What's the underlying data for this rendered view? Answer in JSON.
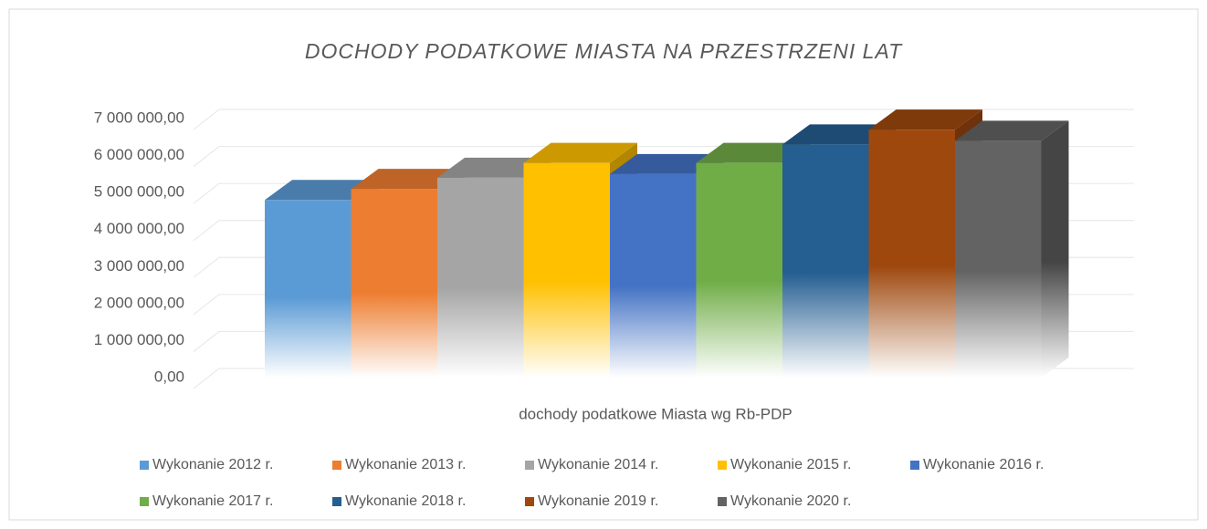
{
  "chart_data": {
    "type": "bar3d",
    "title": "DOCHODY PODATKOWE MIASTA NA PRZESTRZENI LAT",
    "categories": [
      "dochody podatkowe Miasta wg Rb-PDP"
    ],
    "series": [
      {
        "name": "Wykonanie 2012 r.",
        "color": "#5b9bd5",
        "values": [
          4800000
        ]
      },
      {
        "name": "Wykonanie 2013 r.",
        "color": "#ed7d31",
        "values": [
          5100000
        ]
      },
      {
        "name": "Wykonanie 2014 r.",
        "color": "#a5a5a5",
        "values": [
          5400000
        ]
      },
      {
        "name": "Wykonanie 2015 r.",
        "color": "#ffc000",
        "values": [
          5800000
        ]
      },
      {
        "name": "Wykonanie 2016 r.",
        "color": "#4472c4",
        "values": [
          5500000
        ]
      },
      {
        "name": "Wykonanie 2017 r.",
        "color": "#70ad47",
        "values": [
          5800000
        ]
      },
      {
        "name": "Wykonanie 2018 r.",
        "color": "#255e91",
        "values": [
          6300000
        ]
      },
      {
        "name": "Wykonanie 2019 r.",
        "color": "#9e480e",
        "values": [
          6700000
        ]
      },
      {
        "name": "Wykonanie 2020 r.",
        "color": "#636363",
        "values": [
          6400000
        ]
      }
    ],
    "ylim": [
      0,
      7000000
    ],
    "yticks": [
      {
        "value": 0,
        "label": "0,00"
      },
      {
        "value": 1000000,
        "label": "1 000 000,00"
      },
      {
        "value": 2000000,
        "label": "2 000 000,00"
      },
      {
        "value": 3000000,
        "label": "3 000 000,00"
      },
      {
        "value": 4000000,
        "label": "4 000 000,00"
      },
      {
        "value": 5000000,
        "label": "5 000 000,00"
      },
      {
        "value": 6000000,
        "label": "6 000 000,00"
      },
      {
        "value": 7000000,
        "label": "7 000 000,00"
      }
    ],
    "grid": true
  }
}
